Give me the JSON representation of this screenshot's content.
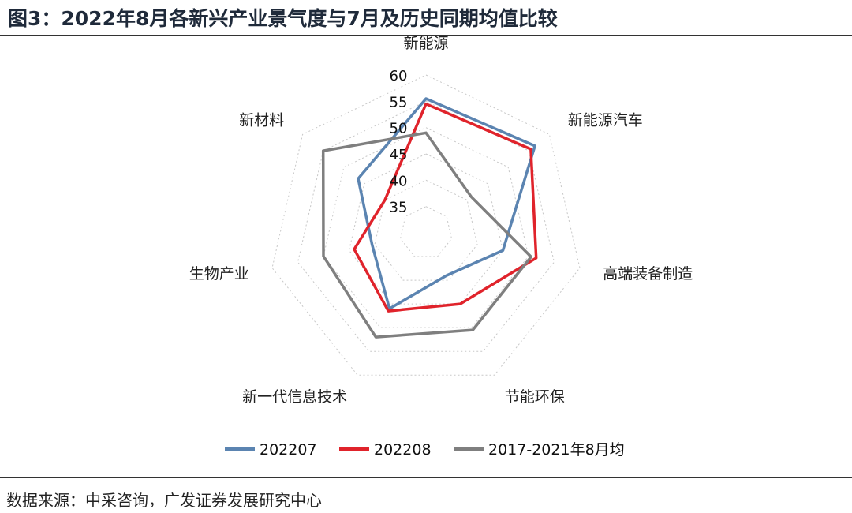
{
  "header": {
    "title": "图3：2022年8月各新兴产业景气度与7月及历史同期均值比较"
  },
  "footer": {
    "source": "数据来源：中采咨询，广发证券发展研究中心"
  },
  "chart_data": {
    "type": "radar",
    "categories": [
      "新能源",
      "新能源汽车",
      "高端装备制造",
      "节能环保",
      "新一代信息技术",
      "生物产业",
      "新材料"
    ],
    "ticks": [
      35,
      40,
      45,
      50,
      55,
      60
    ],
    "range": [
      30,
      60
    ],
    "grid": true,
    "legend_position": "bottom",
    "series": [
      {
        "name": "202207",
        "color": "#5b84b1",
        "values": [
          55.5,
          56.5,
          45.0,
          39.0,
          46.0,
          40.5,
          46.5
        ]
      },
      {
        "name": "202208",
        "color": "#e0232b",
        "values": [
          54.5,
          55.5,
          51.5,
          45.0,
          46.5,
          44.0,
          40.0
        ]
      },
      {
        "name": "2017-2021年8月均",
        "color": "#7f7f7f",
        "values": [
          49.0,
          41.0,
          50.5,
          50.5,
          52.0,
          50.0,
          55.0
        ]
      }
    ]
  }
}
